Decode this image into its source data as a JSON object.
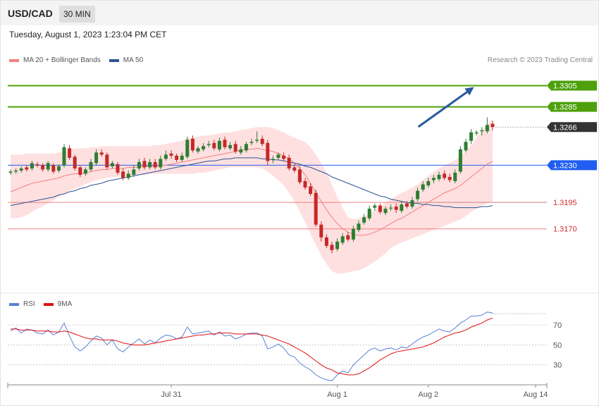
{
  "header": {
    "symbol": "USD/CAD",
    "timeframe": "30 MIN"
  },
  "timestamp": "Tuesday, August 1, 2023 1:23:04 PM CET",
  "credit": "Research © 2023 Trading Central",
  "colors": {
    "bullish": "#2e7d32",
    "bearish": "#c62828",
    "resistance": "#4ea10a",
    "support": "#1f5ef0",
    "pivot": "#333333",
    "target_text": "#d32f2f",
    "ma20": "#f08080",
    "ma50": "#2c5494",
    "bollinger_fill": "#ffe0e0",
    "rsi": "#5b7fd6",
    "rsi_ma": "#e01010",
    "arrow": "#2c5aa0"
  },
  "chart_data": [
    {
      "type": "candlestick",
      "legend": [
        {
          "name": "MA 20 + Bollinger Bands",
          "color": "#f08080"
        },
        {
          "name": "MA 50",
          "color": "#2c5494"
        }
      ],
      "ylim": [
        1.312,
        1.3315
      ],
      "levels": [
        {
          "value": 1.3305,
          "label": "1.3305",
          "kind": "resistance",
          "style": "tag"
        },
        {
          "value": 1.3285,
          "label": "1.3285",
          "kind": "resistance",
          "style": "tag"
        },
        {
          "value": 1.3266,
          "label": "1.3266",
          "kind": "pivot",
          "style": "tag"
        },
        {
          "value": 1.323,
          "label": "1.3230",
          "kind": "support",
          "style": "tag"
        },
        {
          "value": 1.3195,
          "label": "1.3195",
          "kind": "target",
          "style": "text"
        },
        {
          "value": 1.317,
          "label": "1.3170",
          "kind": "target",
          "style": "text"
        }
      ],
      "arrow": {
        "from_bar": 76,
        "from_value": 1.3266,
        "to_bar": 86,
        "to_value": 1.3305
      },
      "x_ticks": [
        {
          "bar": 30,
          "label": "Jul 31"
        },
        {
          "bar": 61,
          "label": "Aug 1"
        },
        {
          "bar": 78,
          "label": "Aug 2"
        },
        {
          "bar": 86,
          "label": "Aug 14"
        }
      ],
      "close": [
        1.3224,
        1.3225,
        1.3227,
        1.3226,
        1.3232,
        1.323,
        1.3226,
        1.3232,
        1.3224,
        1.3229,
        1.3247,
        1.3237,
        1.3227,
        1.3221,
        1.3226,
        1.3233,
        1.3242,
        1.324,
        1.3228,
        1.3232,
        1.3223,
        1.3218,
        1.3222,
        1.3226,
        1.3233,
        1.3228,
        1.3233,
        1.3228,
        1.3236,
        1.324,
        1.3239,
        1.3235,
        1.3239,
        1.3254,
        1.3244,
        1.3246,
        1.3248,
        1.325,
        1.3246,
        1.3253,
        1.3247,
        1.3249,
        1.3243,
        1.3245,
        1.325,
        1.3252,
        1.3254,
        1.325,
        1.3234,
        1.3236,
        1.324,
        1.3236,
        1.3227,
        1.3225,
        1.3214,
        1.3209,
        1.3203,
        1.3174,
        1.3162,
        1.3154,
        1.315,
        1.3158,
        1.3163,
        1.316,
        1.317,
        1.3175,
        1.3181,
        1.3189,
        1.3192,
        1.3186,
        1.3189,
        1.319,
        1.3188,
        1.3193,
        1.3191,
        1.3197,
        1.3206,
        1.3212,
        1.3215,
        1.3218,
        1.3221,
        1.3218,
        1.3216,
        1.3223,
        1.3245,
        1.3252,
        1.3261,
        1.3261,
        1.3263,
        1.3268,
        1.3266
      ],
      "open": [
        1.3223,
        1.3224,
        1.3225,
        1.3228,
        1.3227,
        1.3231,
        1.323,
        1.3226,
        1.323,
        1.3225,
        1.323,
        1.3246,
        1.3238,
        1.3228,
        1.3222,
        1.3226,
        1.3232,
        1.3242,
        1.324,
        1.3229,
        1.3231,
        1.3224,
        1.3218,
        1.3221,
        1.3227,
        1.3234,
        1.3228,
        1.3233,
        1.3228,
        1.3236,
        1.3241,
        1.3239,
        1.3235,
        1.3238,
        1.3255,
        1.3243,
        1.3245,
        1.3249,
        1.3251,
        1.3245,
        1.3254,
        1.3246,
        1.325,
        1.3242,
        1.3244,
        1.3251,
        1.3253,
        1.3255,
        1.3251,
        1.3235,
        1.3237,
        1.3239,
        1.3237,
        1.3228,
        1.3226,
        1.3215,
        1.321,
        1.3204,
        1.3174,
        1.3162,
        1.3155,
        1.3151,
        1.3157,
        1.3164,
        1.316,
        1.3169,
        1.3176,
        1.318,
        1.319,
        1.3192,
        1.3185,
        1.319,
        1.3191,
        1.3187,
        1.3194,
        1.3191,
        1.3198,
        1.3207,
        1.3211,
        1.3216,
        1.3217,
        1.3222,
        1.3219,
        1.3215,
        1.3224,
        1.3244,
        1.3253,
        1.326,
        1.3262,
        1.3262,
        1.3269
      ],
      "high": [
        1.3226,
        1.3227,
        1.3229,
        1.323,
        1.3234,
        1.3233,
        1.3232,
        1.3234,
        1.3232,
        1.3231,
        1.325,
        1.3249,
        1.324,
        1.323,
        1.3228,
        1.3236,
        1.3245,
        1.3245,
        1.3242,
        1.3234,
        1.3233,
        1.3227,
        1.3225,
        1.323,
        1.3236,
        1.3237,
        1.3236,
        1.3236,
        1.3239,
        1.3244,
        1.3244,
        1.3241,
        1.3242,
        1.3257,
        1.3258,
        1.3248,
        1.3251,
        1.3253,
        1.3254,
        1.3256,
        1.3257,
        1.3252,
        1.3253,
        1.3248,
        1.3252,
        1.3255,
        1.3262,
        1.3258,
        1.3254,
        1.3239,
        1.3242,
        1.3242,
        1.324,
        1.3231,
        1.3229,
        1.3218,
        1.3213,
        1.3207,
        1.3177,
        1.3165,
        1.3158,
        1.3161,
        1.3166,
        1.3167,
        1.3173,
        1.3178,
        1.3184,
        1.3192,
        1.3194,
        1.3194,
        1.3191,
        1.3193,
        1.3194,
        1.3196,
        1.3196,
        1.32,
        1.3209,
        1.3215,
        1.3218,
        1.3221,
        1.3224,
        1.3225,
        1.3222,
        1.3226,
        1.3248,
        1.3255,
        1.3264,
        1.3263,
        1.3266,
        1.3275,
        1.3272
      ],
      "low": [
        1.3221,
        1.3222,
        1.3223,
        1.3224,
        1.3225,
        1.3228,
        1.3224,
        1.3224,
        1.3222,
        1.3223,
        1.3228,
        1.3235,
        1.3225,
        1.3219,
        1.322,
        1.3224,
        1.323,
        1.3238,
        1.3226,
        1.3227,
        1.3221,
        1.3216,
        1.3216,
        1.3219,
        1.3225,
        1.3226,
        1.3226,
        1.3226,
        1.3226,
        1.3234,
        1.3236,
        1.3233,
        1.3233,
        1.3236,
        1.3242,
        1.3241,
        1.3243,
        1.3247,
        1.3244,
        1.3243,
        1.3245,
        1.3244,
        1.3241,
        1.324,
        1.3242,
        1.3249,
        1.3251,
        1.3248,
        1.323,
        1.3232,
        1.3235,
        1.3234,
        1.3225,
        1.3223,
        1.3212,
        1.3207,
        1.3201,
        1.3172,
        1.3158,
        1.3152,
        1.3147,
        1.3149,
        1.3155,
        1.3158,
        1.3158,
        1.3167,
        1.3174,
        1.3178,
        1.3187,
        1.3184,
        1.3183,
        1.3187,
        1.3185,
        1.3185,
        1.3189,
        1.3189,
        1.3196,
        1.3205,
        1.3209,
        1.3213,
        1.3215,
        1.3216,
        1.3214,
        1.3213,
        1.3222,
        1.3242,
        1.325,
        1.3258,
        1.3258,
        1.326,
        1.3263
      ],
      "ma20": [
        1.3205,
        1.3207,
        1.3209,
        1.3211,
        1.3213,
        1.3214,
        1.3215,
        1.3216,
        1.3217,
        1.3218,
        1.322,
        1.3221,
        1.3222,
        1.3222,
        1.3223,
        1.3224,
        1.3225,
        1.3226,
        1.3226,
        1.3227,
        1.3227,
        1.3227,
        1.3228,
        1.3228,
        1.3228,
        1.3229,
        1.3229,
        1.3229,
        1.323,
        1.323,
        1.3231,
        1.3232,
        1.3233,
        1.3234,
        1.3235,
        1.3236,
        1.3237,
        1.3238,
        1.3239,
        1.324,
        1.3241,
        1.3242,
        1.3243,
        1.3244,
        1.3245,
        1.3245,
        1.3246,
        1.3245,
        1.3244,
        1.3243,
        1.3241,
        1.3239,
        1.3236,
        1.3232,
        1.3227,
        1.3221,
        1.3213,
        1.3204,
        1.3196,
        1.3188,
        1.3181,
        1.3175,
        1.317,
        1.3167,
        1.3165,
        1.3164,
        1.3164,
        1.3165,
        1.3167,
        1.3169,
        1.3172,
        1.3175,
        1.3178,
        1.318,
        1.3183,
        1.3186,
        1.3189,
        1.3192,
        1.3195,
        1.3198,
        1.3201,
        1.3204,
        1.3206,
        1.3208,
        1.3211,
        1.3215,
        1.3219,
        1.3223,
        1.3227,
        1.3231,
        1.3234
      ],
      "bb_upper": [
        1.324,
        1.324,
        1.324,
        1.3241,
        1.3241,
        1.3241,
        1.3241,
        1.3241,
        1.3241,
        1.3242,
        1.3243,
        1.3245,
        1.3246,
        1.3246,
        1.3246,
        1.3247,
        1.3247,
        1.3248,
        1.3248,
        1.3248,
        1.3248,
        1.3248,
        1.3248,
        1.3248,
        1.3248,
        1.3248,
        1.3248,
        1.3249,
        1.3249,
        1.325,
        1.3251,
        1.3252,
        1.3253,
        1.3255,
        1.3256,
        1.3257,
        1.3258,
        1.3258,
        1.3259,
        1.326,
        1.3261,
        1.3261,
        1.3262,
        1.3263,
        1.3264,
        1.3265,
        1.3266,
        1.3266,
        1.3266,
        1.3265,
        1.3263,
        1.3261,
        1.3258,
        1.3256,
        1.3254,
        1.3252,
        1.3247,
        1.324,
        1.3232,
        1.3223,
        1.3212,
        1.32,
        1.319,
        1.3181,
        1.3179,
        1.318,
        1.3182,
        1.3184,
        1.3188,
        1.3191,
        1.3195,
        1.3198,
        1.3201,
        1.3204,
        1.3206,
        1.3209,
        1.3212,
        1.3216,
        1.322,
        1.3224,
        1.3227,
        1.323,
        1.3232,
        1.3235,
        1.3238,
        1.3243,
        1.3249,
        1.3256,
        1.3263,
        1.3269,
        1.3273
      ],
      "bb_lower": [
        1.318,
        1.318,
        1.3181,
        1.3183,
        1.3186,
        1.3189,
        1.3191,
        1.3194,
        1.3197,
        1.32,
        1.3203,
        1.3206,
        1.3208,
        1.321,
        1.3212,
        1.3214,
        1.3216,
        1.3217,
        1.3218,
        1.3219,
        1.3219,
        1.322,
        1.322,
        1.322,
        1.3221,
        1.3221,
        1.3222,
        1.3222,
        1.3222,
        1.3222,
        1.3222,
        1.3222,
        1.3222,
        1.3222,
        1.3222,
        1.3223,
        1.3223,
        1.3224,
        1.3225,
        1.3226,
        1.3227,
        1.3228,
        1.3228,
        1.3228,
        1.3228,
        1.3228,
        1.3228,
        1.3227,
        1.3224,
        1.322,
        1.3216,
        1.3211,
        1.3204,
        1.3196,
        1.3186,
        1.3176,
        1.3165,
        1.3155,
        1.3145,
        1.3137,
        1.313,
        1.3128,
        1.3128,
        1.3129,
        1.313,
        1.3131,
        1.3133,
        1.3136,
        1.3139,
        1.3143,
        1.3147,
        1.3152,
        1.3155,
        1.3157,
        1.3159,
        1.3161,
        1.3163,
        1.3165,
        1.3167,
        1.3169,
        1.3171,
        1.3173,
        1.3175,
        1.3177,
        1.3179,
        1.3182,
        1.3186,
        1.3189,
        1.3192,
        1.3194,
        1.3196
      ],
      "ma50": [
        1.3192,
        1.3193,
        1.3194,
        1.3195,
        1.3196,
        1.3197,
        1.3198,
        1.3199,
        1.32,
        1.3202,
        1.3203,
        1.3205,
        1.3206,
        1.3208,
        1.3209,
        1.3211,
        1.3212,
        1.3213,
        1.3215,
        1.3216,
        1.3217,
        1.3218,
        1.3219,
        1.322,
        1.3221,
        1.3222,
        1.3223,
        1.3224,
        1.3225,
        1.3226,
        1.3227,
        1.3228,
        1.3229,
        1.323,
        1.3231,
        1.3232,
        1.3233,
        1.3234,
        1.3234,
        1.3235,
        1.3236,
        1.3236,
        1.3237,
        1.3237,
        1.3237,
        1.3237,
        1.3237,
        1.3236,
        1.3236,
        1.3235,
        1.3235,
        1.3234,
        1.3233,
        1.3232,
        1.3231,
        1.3229,
        1.3228,
        1.3226,
        1.3224,
        1.3222,
        1.3219,
        1.3217,
        1.3215,
        1.3213,
        1.3211,
        1.3209,
        1.3207,
        1.3205,
        1.3203,
        1.3201,
        1.32,
        1.3198,
        1.3197,
        1.3196,
        1.3195,
        1.3194,
        1.3194,
        1.3193,
        1.3193,
        1.3192,
        1.3192,
        1.3191,
        1.3191,
        1.319,
        1.319,
        1.319,
        1.319,
        1.319,
        1.3191,
        1.3191,
        1.3192
      ]
    },
    {
      "type": "line",
      "legend": [
        {
          "name": "RSI",
          "color": "#5b7fd6"
        },
        {
          "name": "9MA",
          "color": "#e01010"
        }
      ],
      "ylim": [
        10,
        92
      ],
      "y_ticks": [
        30,
        50,
        70
      ],
      "rsi": [
        64,
        67,
        62,
        66,
        65,
        62,
        61,
        65,
        60,
        63,
        72,
        59,
        48,
        44,
        48,
        54,
        59,
        57,
        50,
        55,
        46,
        43,
        48,
        52,
        56,
        51,
        55,
        52,
        57,
        60,
        59,
        56,
        58,
        68,
        61,
        62,
        63,
        64,
        60,
        63,
        59,
        60,
        56,
        58,
        61,
        62,
        62,
        59,
        46,
        48,
        51,
        47,
        40,
        38,
        32,
        28,
        25,
        20,
        17,
        15,
        14,
        20,
        24,
        22,
        30,
        35,
        40,
        45,
        47,
        44,
        46,
        47,
        45,
        48,
        47,
        51,
        55,
        58,
        60,
        63,
        66,
        64,
        63,
        67,
        72,
        75,
        79,
        79,
        80,
        83,
        82
      ],
      "rsi_ma": [
        66,
        66,
        65,
        65,
        65,
        64,
        64,
        64,
        63,
        63,
        64,
        63,
        61,
        59,
        57,
        56,
        56,
        55,
        55,
        55,
        54,
        52,
        51,
        50,
        50,
        50,
        51,
        52,
        53,
        54,
        55,
        56,
        57,
        58,
        59,
        60,
        60,
        61,
        61,
        62,
        62,
        62,
        61,
        61,
        61,
        61,
        61,
        60,
        59,
        57,
        55,
        53,
        51,
        48,
        45,
        42,
        38,
        34,
        30,
        27,
        25,
        22,
        21,
        20,
        20,
        21,
        24,
        27,
        31,
        35,
        38,
        41,
        43,
        44,
        45,
        46,
        47,
        48,
        50,
        52,
        55,
        58,
        60,
        62,
        63,
        65,
        68,
        70,
        72,
        75,
        77
      ]
    }
  ]
}
